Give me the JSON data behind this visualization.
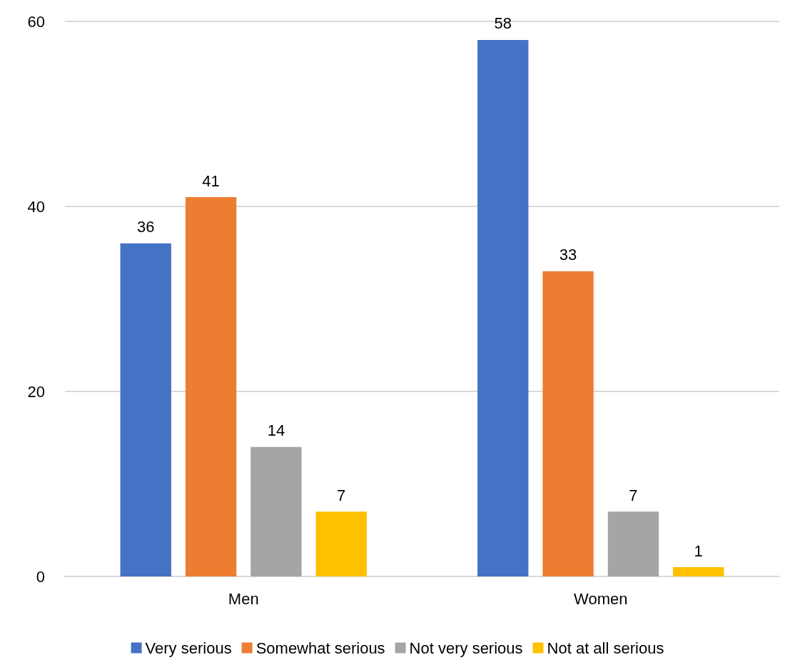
{
  "chart_data": {
    "type": "bar",
    "categories": [
      "Men",
      "Women"
    ],
    "series": [
      {
        "name": "Very serious",
        "color": "#4472c4",
        "values": [
          36,
          58
        ]
      },
      {
        "name": "Somewhat serious",
        "color": "#ed7d31",
        "values": [
          41,
          33
        ]
      },
      {
        "name": "Not very serious",
        "color": "#a5a5a5",
        "values": [
          14,
          7
        ]
      },
      {
        "name": "Not at all serious",
        "color": "#ffc000",
        "values": [
          7,
          1
        ]
      }
    ],
    "ylim": [
      0,
      60
    ],
    "yticks": [
      0,
      20,
      40,
      60
    ],
    "grid": "y",
    "legend": "bottom",
    "data_labels": true
  }
}
